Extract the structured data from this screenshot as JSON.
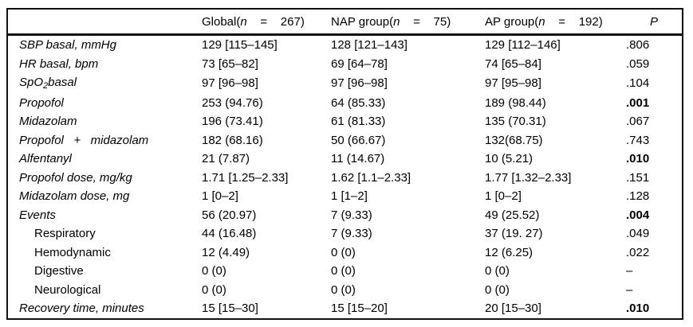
{
  "table": {
    "colors": {
      "text": "#000000",
      "rule": "#111111",
      "background": "#ffffff"
    },
    "header": {
      "row_label": "",
      "groups": [
        {
          "pre": "Global(",
          "n": "n",
          "post": "    =    267)"
        },
        {
          "pre": "NAP group(",
          "n": "n",
          "post": "    =    75)"
        },
        {
          "pre": "AP group(",
          "n": "n",
          "post": "    =    192)"
        }
      ],
      "p": "P"
    },
    "rows": [
      {
        "label": "SBP basal, mmHg",
        "italic": true,
        "indent": false,
        "global": "129 [115–145]",
        "nap": "128 [121–143]",
        "ap": "129 [112–146]",
        "p": ".806",
        "p_bold": false
      },
      {
        "label": "HR basal, bpm",
        "italic": true,
        "indent": false,
        "global": "73 [65–82]",
        "nap": "69 [64–78]",
        "ap": "74 [65–84]",
        "p": ".059",
        "p_bold": false
      },
      {
        "label_parts": [
          {
            "t": "SpO"
          },
          {
            "t": "2",
            "sub": true
          },
          {
            "t": "basal"
          }
        ],
        "italic": true,
        "indent": false,
        "global": "97 [96–98]",
        "nap": "97 [96–98]",
        "ap": "97 [95–98]",
        "p": ".104",
        "p_bold": false
      },
      {
        "label": "Propofol",
        "italic": true,
        "indent": false,
        "global": "253 (94.76)",
        "nap": "64 (85.33)",
        "ap": "189 (98.44)",
        "p": ".001",
        "p_bold": true
      },
      {
        "label": "Midazolam",
        "italic": true,
        "indent": false,
        "global": "196 (73.41)",
        "nap": "61 (81.33)",
        "ap": "135 (70.31)",
        "p": ".067",
        "p_bold": false
      },
      {
        "label": "Propofol   +   midazolam",
        "italic": true,
        "indent": false,
        "global": "182 (68.16)",
        "nap": "50 (66.67)",
        "ap": "132(68.75)",
        "p": ".743",
        "p_bold": false
      },
      {
        "label": "Alfentanyl",
        "italic": true,
        "indent": false,
        "global": "21 (7.87)",
        "nap": "11 (14.67)",
        "ap": "10 (5.21)",
        "p": ".010",
        "p_bold": true
      },
      {
        "label": "Propofol dose, mg/kg",
        "italic": true,
        "indent": false,
        "global": "1.71 [1.25–2.33]",
        "nap": "1.62 [1.1–2.33]",
        "ap": "1.77 [1.32–2.33]",
        "p": ".151",
        "p_bold": false
      },
      {
        "label": "Midazolam dose, mg",
        "italic": true,
        "indent": false,
        "global": "1 [0–2]",
        "nap": "1 [1–2]",
        "ap": "1 [0–2]",
        "p": ".128",
        "p_bold": false
      },
      {
        "label": "Events",
        "italic": true,
        "indent": false,
        "global": "56 (20.97)",
        "nap": "7 (9.33)",
        "ap": "49 (25.52)",
        "p": ".004",
        "p_bold": true
      },
      {
        "label": "Respiratory",
        "italic": false,
        "indent": true,
        "global": "44 (16.48)",
        "nap": "7 (9.33)",
        "ap": "37 (19. 27)",
        "p": ".049",
        "p_bold": false
      },
      {
        "label": "Hemodynamic",
        "italic": false,
        "indent": true,
        "global": "12 (4.49)",
        "nap": "0 (0)",
        "ap": "12 (6.25)",
        "p": ".022",
        "p_bold": false
      },
      {
        "label": "Digestive",
        "italic": false,
        "indent": true,
        "global": "0 (0)",
        "nap": "0 (0)",
        "ap": "0 (0)",
        "p": "–",
        "p_bold": false
      },
      {
        "label": "Neurological",
        "italic": false,
        "indent": true,
        "global": "0 (0)",
        "nap": "0 (0)",
        "ap": "0 (0)",
        "p": "–",
        "p_bold": false
      },
      {
        "label": "Recovery time, minutes",
        "italic": true,
        "indent": false,
        "global": "15 [15–30]",
        "nap": "15 [15–20]",
        "ap": "20 [15–30]",
        "p": ".010",
        "p_bold": true
      }
    ]
  }
}
